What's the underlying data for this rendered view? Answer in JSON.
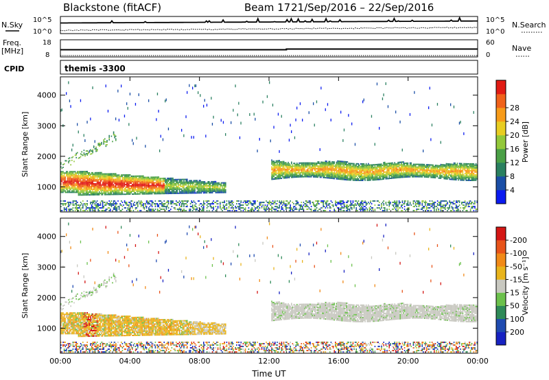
{
  "header": {
    "radar": "Blackstone (fitACF)",
    "beam": "Beam 17",
    "dates": "21/Sep/2016 – 22/Sep/2016"
  },
  "summary": {
    "nsky_label": "N.Sky",
    "nsky_ticks": [
      "10^5",
      "10^0"
    ],
    "nsearch_label": "N.Search",
    "nsearch_ticks": [
      "10^5",
      "10^0"
    ],
    "freq_label": "Freq.",
    "freq_unit": "[MHz]",
    "freq_ticks": [
      "18",
      "8"
    ],
    "nave_label": "Nave",
    "nave_ticks": [
      "60",
      "0"
    ],
    "cpid_label": "CPID",
    "cpid_value": "themis -3300"
  },
  "chart_data": [
    {
      "type": "heatmap",
      "name": "power",
      "ylabel": "Slant Range [km]",
      "xlabel": "Time UT",
      "x_ticks": [
        "00:00",
        "04:00",
        "08:00",
        "12:00",
        "16:00",
        "20:00",
        "00:00"
      ],
      "x_range_hours": [
        0,
        24
      ],
      "y_ticks": [
        "1000",
        "2000",
        "3000",
        "4000"
      ],
      "y_range_km": [
        180,
        4600
      ],
      "colorbar_label": "Power [dB]",
      "colorbar_ticks": [
        "4",
        "8",
        "12",
        "16",
        "20",
        "24",
        "28"
      ],
      "colorbar_colors": [
        "#0b1bf0",
        "#1a4ea6",
        "#2a8060",
        "#4aa046",
        "#93c83a",
        "#e8cd22",
        "#f79b19",
        "#f0621a",
        "#e11b14"
      ],
      "colorbar_range": [
        0,
        32
      ]
    },
    {
      "type": "heatmap",
      "name": "velocity",
      "ylabel": "Slant Range [km]",
      "xlabel": "Time UT",
      "x_ticks": [
        "00:00",
        "04:00",
        "08:00",
        "12:00",
        "16:00",
        "20:00",
        "00:00"
      ],
      "x_range_hours": [
        0,
        24
      ],
      "y_ticks": [
        "1000",
        "2000",
        "3000",
        "4000"
      ],
      "y_range_km": [
        180,
        4600
      ],
      "colorbar_label": "Velocity [m s⁻¹]",
      "colorbar_ticks": [
        "200",
        "100",
        "50",
        "15",
        "-15",
        "-50",
        "-100",
        "-200"
      ],
      "colorbar_colors": [
        "#1722c2",
        "#1f4bb0",
        "#2f8a58",
        "#6cc14c",
        "#c8c8c0",
        "#e9b41c",
        "#f18a18",
        "#e8541a",
        "#d41614"
      ]
    }
  ]
}
